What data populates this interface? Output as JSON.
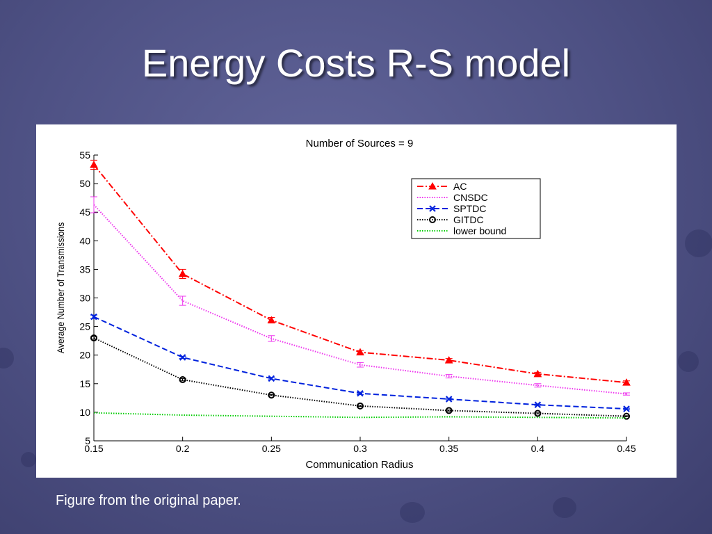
{
  "slide": {
    "title": "Energy Costs R-S model",
    "caption": "Figure from the original paper."
  },
  "chart_data": {
    "type": "line",
    "title": "Number of Sources = 9",
    "xlabel": "Communication Radius",
    "ylabel": "Average Number of Transmissions",
    "x": [
      0.15,
      0.2,
      0.25,
      0.3,
      0.35,
      0.4,
      0.45
    ],
    "x_tick_labels": [
      "0.15",
      "0.2",
      "0.25",
      "0.3",
      "0.35",
      "0.4",
      "0.45"
    ],
    "y_ticks": [
      5,
      10,
      15,
      20,
      25,
      30,
      35,
      40,
      45,
      50,
      55
    ],
    "xlim": [
      0.15,
      0.45
    ],
    "ylim": [
      5,
      55
    ],
    "grid": false,
    "legend_position": "top-right",
    "series": [
      {
        "name": "AC",
        "values": [
          53.3,
          34.2,
          26.1,
          20.5,
          19.1,
          16.7,
          15.2
        ],
        "color": "#ff0000",
        "dash": "dash-dot",
        "marker": "triangle",
        "error": [
          0.8,
          0.8,
          0.5,
          0.3,
          0.3,
          0.3,
          0.3
        ]
      },
      {
        "name": "CNSDC",
        "values": [
          46.3,
          29.5,
          22.9,
          18.3,
          16.3,
          14.7,
          13.2
        ],
        "color": "#ee33ee",
        "dash": "dotted",
        "marker": "none",
        "error": [
          1.4,
          0.8,
          0.5,
          0.4,
          0.3,
          0.3,
          0.2
        ]
      },
      {
        "name": "SPTDC",
        "values": [
          26.7,
          19.6,
          15.9,
          13.3,
          12.3,
          11.3,
          10.6
        ],
        "color": "#0022dd",
        "dash": "dashed",
        "marker": "x",
        "error": [
          0.3,
          0.2,
          0.2,
          0.2,
          0.1,
          0.1,
          0.1
        ]
      },
      {
        "name": "GITDC",
        "values": [
          23.0,
          15.7,
          13.0,
          11.1,
          10.3,
          9.8,
          9.3
        ],
        "color": "#000000",
        "dash": "dotted",
        "marker": "circle",
        "error": [
          0.2,
          0.2,
          0.1,
          0.1,
          0.1,
          0.1,
          0.1
        ]
      },
      {
        "name": "lower bound",
        "values": [
          9.9,
          9.5,
          9.3,
          9.1,
          9.2,
          9.1,
          9.0
        ],
        "color": "#00cc00",
        "dash": "dotted",
        "marker": "none",
        "error": [
          0,
          0,
          0,
          0,
          0,
          0,
          0
        ]
      }
    ]
  }
}
